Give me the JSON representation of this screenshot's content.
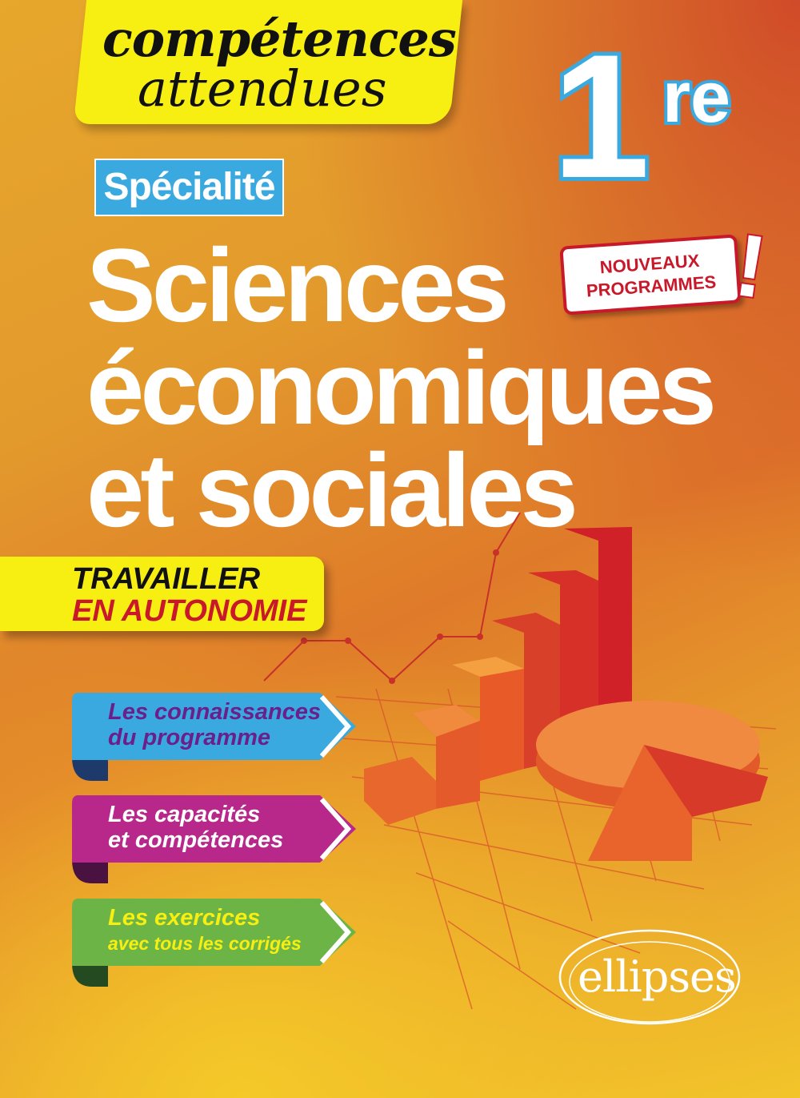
{
  "series_banner": {
    "line1": "compétences",
    "line2": "attendues"
  },
  "grade": {
    "number": "1",
    "suffix": "re"
  },
  "specialty_label": "Spécialité",
  "title": {
    "line1": "Sciences",
    "line2": "économiques",
    "line3": "et sociales"
  },
  "badge": {
    "line1": "NOUVEAUX",
    "line2": "PROGRAMMES",
    "mark": "!"
  },
  "autonomy": {
    "line1": "TRAVAILLER",
    "line2": "EN AUTONOMIE"
  },
  "ribbons": [
    {
      "line1": "Les connaissances",
      "line2": "du programme",
      "color": "#3aa9e0",
      "text_color": "#6a1f8a"
    },
    {
      "line1": "Les capacités",
      "line2": "et compétences",
      "color": "#b8278a",
      "text_color": "#ffffff"
    },
    {
      "line1": "Les exercices",
      "line2": "avec tous les corrigés",
      "color": "#6cb446",
      "text_color": "#f7ee12"
    }
  ],
  "publisher": "ellipses",
  "colors": {
    "yellow": "#f7ee12",
    "blue": "#3aa9e0",
    "red": "#c8182a"
  }
}
